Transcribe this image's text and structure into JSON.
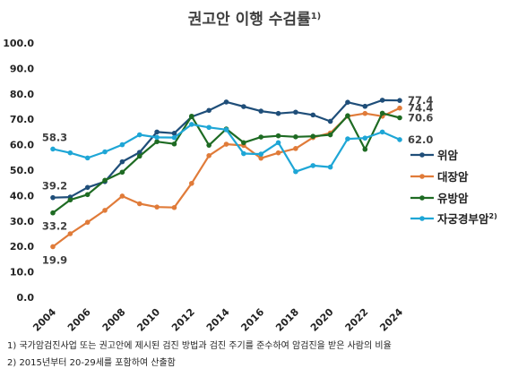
{
  "chart_data": {
    "type": "line",
    "title": "권고안 이행 수검률",
    "title_footnote_ref": "1)",
    "ylim": [
      0,
      100
    ],
    "yticks": [
      "0.0",
      "10.0",
      "20.0",
      "30.0",
      "40.0",
      "50.0",
      "60.0",
      "70.0",
      "80.0",
      "90.0",
      "100.0"
    ],
    "x": [
      2004,
      2005,
      2006,
      2007,
      2008,
      2009,
      2010,
      2011,
      2012,
      2013,
      2014,
      2015,
      2016,
      2017,
      2018,
      2019,
      2020,
      2021,
      2022,
      2023,
      2024
    ],
    "xticks": [
      "2004",
      "2006",
      "2008",
      "2010",
      "2012",
      "2014",
      "2016",
      "2018",
      "2020",
      "2022",
      "2024"
    ],
    "grid": false,
    "legend_position": "right",
    "series": [
      {
        "name": "위암",
        "color": "#1f4e79",
        "values": [
          39.2,
          39.4,
          43.2,
          45.5,
          53.3,
          57.0,
          65.0,
          64.5,
          71.0,
          73.5,
          76.8,
          75.0,
          73.2,
          72.3,
          72.8,
          71.7,
          69.2,
          76.7,
          75.1,
          77.5,
          77.4
        ]
      },
      {
        "name": "대장암",
        "color": "#e07b39",
        "values": [
          19.9,
          25.0,
          29.5,
          34.2,
          39.8,
          36.8,
          35.5,
          35.3,
          44.8,
          55.7,
          60.2,
          59.7,
          54.7,
          56.8,
          58.5,
          62.8,
          64.6,
          71.2,
          72.3,
          71.2,
          74.4
        ]
      },
      {
        "name": "유방암",
        "color": "#1e6b23",
        "values": [
          33.2,
          38.3,
          40.4,
          46.0,
          49.2,
          55.5,
          61.2,
          60.3,
          71.2,
          59.8,
          66.2,
          60.8,
          63.0,
          63.5,
          63.1,
          63.3,
          63.9,
          71.4,
          58.2,
          72.4,
          70.6
        ]
      },
      {
        "name": "자궁경부암",
        "name_footnote_ref": "2)",
        "color": "#1ea6d6",
        "values": [
          58.3,
          56.8,
          54.8,
          57.2,
          60.0,
          63.9,
          62.9,
          62.8,
          68.0,
          66.8,
          65.9,
          56.5,
          56.3,
          60.8,
          49.4,
          51.8,
          51.2,
          62.3,
          62.6,
          65.0,
          62.0
        ]
      }
    ],
    "data_labels": [
      {
        "series": 0,
        "index": 0,
        "text": "39.2",
        "side": "above-left"
      },
      {
        "series": 1,
        "index": 0,
        "text": "19.9",
        "side": "below-left"
      },
      {
        "series": 2,
        "index": 0,
        "text": "33.2",
        "side": "below-left"
      },
      {
        "series": 3,
        "index": 0,
        "text": "58.3",
        "side": "above-left"
      },
      {
        "series": 0,
        "index": 20,
        "text": "77.4",
        "side": "right"
      },
      {
        "series": 1,
        "index": 20,
        "text": "74.4",
        "side": "right"
      },
      {
        "series": 2,
        "index": 20,
        "text": "70.6",
        "side": "right"
      },
      {
        "series": 3,
        "index": 20,
        "text": "62.0",
        "side": "right"
      }
    ]
  },
  "footnotes": [
    "1) 국가암검진사업 또는 권고안에 제시된 검진 방법과 검진 주기를 준수하여 암검진을 받은 사람의 비율",
    "2) 2015년부터 20-29세를 포함하여 산출함"
  ]
}
